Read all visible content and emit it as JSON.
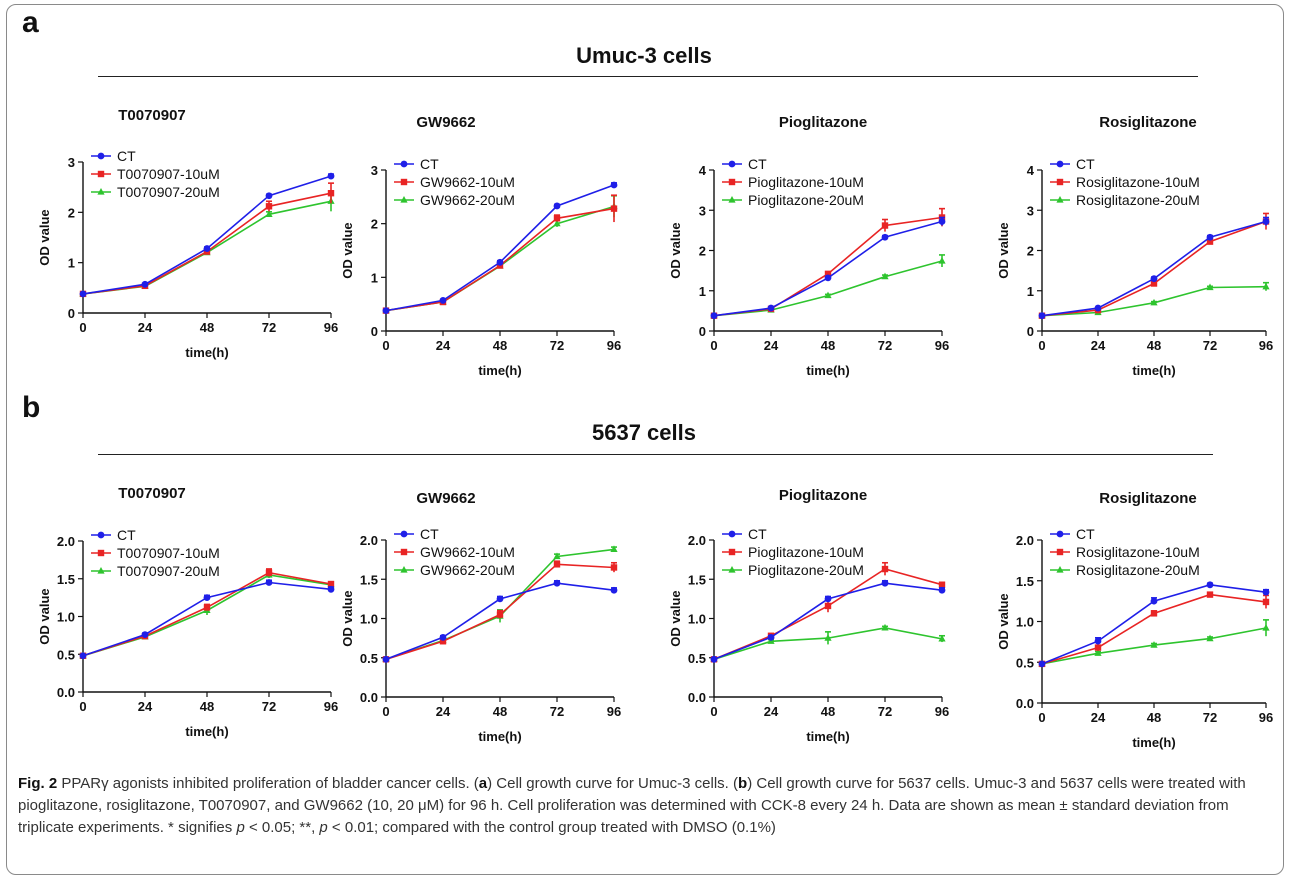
{
  "panels": [
    {
      "letter": "a",
      "title": "Umuc-3 cells"
    },
    {
      "letter": "b",
      "title": "5637 cells"
    }
  ],
  "colors": {
    "CT": "#1f1fe8",
    "10uM": "#e82424",
    "20uM": "#2ec42e"
  },
  "chart_data": [
    {
      "panel": "a",
      "type": "line",
      "title": "T0070907",
      "xlabel": "time(h)",
      "ylabel": "OD value",
      "x": [
        0,
        24,
        48,
        72,
        96
      ],
      "xlim": [
        0,
        96
      ],
      "ylim": [
        0,
        3
      ],
      "yticks": [
        "0",
        "1",
        "2",
        "3"
      ],
      "legend": "top-left",
      "series": [
        {
          "name": "CT",
          "values": [
            0.38,
            0.57,
            1.28,
            2.33,
            2.72
          ],
          "err": [
            0,
            0.02,
            0.03,
            0.03,
            0.04
          ]
        },
        {
          "name": "T0070907-10uM",
          "values": [
            0.38,
            0.54,
            1.22,
            2.12,
            2.38
          ],
          "err": [
            0,
            0.02,
            0.04,
            0.1,
            0.2
          ]
        },
        {
          "name": "T0070907-20uM",
          "values": [
            0.38,
            0.53,
            1.2,
            1.96,
            2.22
          ],
          "err": [
            0,
            0.02,
            0.04,
            0.05,
            0.2
          ]
        }
      ]
    },
    {
      "panel": "a",
      "type": "line",
      "title": "GW9662",
      "xlabel": "time(h)",
      "ylabel": "OD value",
      "x": [
        0,
        24,
        48,
        72,
        96
      ],
      "xlim": [
        0,
        96
      ],
      "ylim": [
        0,
        3
      ],
      "yticks": [
        "0",
        "1",
        "2",
        "3"
      ],
      "legend": "top-left",
      "series": [
        {
          "name": "CT",
          "values": [
            0.38,
            0.57,
            1.28,
            2.33,
            2.72
          ],
          "err": [
            0,
            0.02,
            0.03,
            0.03,
            0.04
          ]
        },
        {
          "name": "GW9662-10uM",
          "values": [
            0.38,
            0.54,
            1.22,
            2.1,
            2.28
          ],
          "err": [
            0,
            0.02,
            0.04,
            0.06,
            0.25
          ]
        },
        {
          "name": "GW9662-20uM",
          "values": [
            0.38,
            0.54,
            1.21,
            2.0,
            2.32
          ],
          "err": [
            0,
            0.02,
            0.04,
            0.06,
            0.2
          ]
        }
      ]
    },
    {
      "panel": "a",
      "type": "line",
      "title": "Pioglitazone",
      "xlabel": "time(h)",
      "ylabel": "OD value",
      "x": [
        0,
        24,
        48,
        72,
        96
      ],
      "xlim": [
        0,
        96
      ],
      "ylim": [
        0,
        4
      ],
      "yticks": [
        "0",
        "1",
        "2",
        "3",
        "4"
      ],
      "legend": "top-left",
      "series": [
        {
          "name": "CT",
          "values": [
            0.38,
            0.57,
            1.32,
            2.33,
            2.72
          ],
          "err": [
            0,
            0.02,
            0.04,
            0.04,
            0.1
          ]
        },
        {
          "name": "Pioglitazone-10uM",
          "values": [
            0.38,
            0.55,
            1.42,
            2.62,
            2.82
          ],
          "err": [
            0,
            0.02,
            0.05,
            0.15,
            0.22
          ]
        },
        {
          "name": "Pioglitazone-20uM",
          "values": [
            0.38,
            0.52,
            0.88,
            1.35,
            1.74
          ],
          "err": [
            0,
            0.02,
            0.03,
            0.04,
            0.15
          ]
        }
      ]
    },
    {
      "panel": "a",
      "type": "line",
      "title": "Rosiglitazone",
      "xlabel": "time(h)",
      "ylabel": "OD value",
      "x": [
        0,
        24,
        48,
        72,
        96
      ],
      "xlim": [
        0,
        96
      ],
      "ylim": [
        0,
        4
      ],
      "yticks": [
        "0",
        "1",
        "2",
        "3",
        "4"
      ],
      "legend": "top-left",
      "series": [
        {
          "name": "CT",
          "values": [
            0.38,
            0.57,
            1.3,
            2.33,
            2.72
          ],
          "err": [
            0,
            0.02,
            0.04,
            0.04,
            0.1
          ]
        },
        {
          "name": "Rosiglitazone-10uM",
          "values": [
            0.38,
            0.52,
            1.18,
            2.22,
            2.72
          ],
          "err": [
            0,
            0.02,
            0.04,
            0.06,
            0.2
          ]
        },
        {
          "name": "Rosiglitazone-20uM",
          "values": [
            0.38,
            0.46,
            0.7,
            1.08,
            1.1
          ],
          "err": [
            0,
            0.02,
            0.03,
            0.03,
            0.1
          ]
        }
      ]
    },
    {
      "panel": "b",
      "type": "line",
      "title": "T0070907",
      "xlabel": "time(h)",
      "ylabel": "OD value",
      "x": [
        0,
        24,
        48,
        72,
        96
      ],
      "xlim": [
        0,
        96
      ],
      "ylim": [
        0,
        2
      ],
      "yticks": [
        "0.0",
        "0.5",
        "1.0",
        "1.5",
        "2.0"
      ],
      "legend": "top-left",
      "series": [
        {
          "name": "CT",
          "values": [
            0.48,
            0.76,
            1.25,
            1.45,
            1.36
          ],
          "err": [
            0,
            0.02,
            0.03,
            0.03,
            0.03
          ]
        },
        {
          "name": "T0070907-10uM",
          "values": [
            0.48,
            0.74,
            1.12,
            1.58,
            1.43
          ],
          "err": [
            0,
            0.02,
            0.04,
            0.05,
            0.03
          ]
        },
        {
          "name": "T0070907-20uM",
          "values": [
            0.48,
            0.73,
            1.08,
            1.55,
            1.42
          ],
          "err": [
            0,
            0.02,
            0.06,
            0.04,
            0.03
          ]
        }
      ]
    },
    {
      "panel": "b",
      "type": "line",
      "title": "GW9662",
      "xlabel": "time(h)",
      "ylabel": "OD value",
      "x": [
        0,
        24,
        48,
        72,
        96
      ],
      "xlim": [
        0,
        96
      ],
      "ylim": [
        0,
        2
      ],
      "yticks": [
        "0.0",
        "0.5",
        "1.0",
        "1.5",
        "2.0"
      ],
      "legend": "top-left",
      "series": [
        {
          "name": "CT",
          "values": [
            0.48,
            0.76,
            1.25,
            1.45,
            1.36
          ],
          "err": [
            0,
            0.02,
            0.03,
            0.03,
            0.03
          ]
        },
        {
          "name": "GW9662-10uM",
          "values": [
            0.48,
            0.71,
            1.05,
            1.69,
            1.65
          ],
          "err": [
            0,
            0.02,
            0.05,
            0.04,
            0.06
          ]
        },
        {
          "name": "GW9662-20uM",
          "values": [
            0.48,
            0.72,
            1.03,
            1.79,
            1.88
          ],
          "err": [
            0,
            0.02,
            0.08,
            0.03,
            0.03
          ]
        }
      ]
    },
    {
      "panel": "b",
      "type": "line",
      "title": "Pioglitazone",
      "xlabel": "time(h)",
      "ylabel": "OD value",
      "x": [
        0,
        24,
        48,
        72,
        96
      ],
      "xlim": [
        0,
        96
      ],
      "ylim": [
        0,
        2
      ],
      "yticks": [
        "0.0",
        "0.5",
        "1.0",
        "1.5",
        "2.0"
      ],
      "legend": "top-left",
      "series": [
        {
          "name": "CT",
          "values": [
            0.48,
            0.76,
            1.25,
            1.45,
            1.36
          ],
          "err": [
            0,
            0.02,
            0.03,
            0.03,
            0.03
          ]
        },
        {
          "name": "Pioglitazone-10uM",
          "values": [
            0.48,
            0.78,
            1.16,
            1.63,
            1.43
          ],
          "err": [
            0,
            0.02,
            0.08,
            0.08,
            0.03
          ]
        },
        {
          "name": "Pioglitazone-20uM",
          "values": [
            0.48,
            0.71,
            0.75,
            0.88,
            0.74
          ],
          "err": [
            0,
            0.02,
            0.08,
            0.02,
            0.04
          ]
        }
      ]
    },
    {
      "panel": "b",
      "type": "line",
      "title": "Rosiglitazone",
      "xlabel": "time(h)",
      "ylabel": "OD value",
      "x": [
        0,
        24,
        48,
        72,
        96
      ],
      "xlim": [
        0,
        96
      ],
      "ylim": [
        0,
        2
      ],
      "yticks": [
        "0.0",
        "0.5",
        "1.0",
        "1.5",
        "2.0"
      ],
      "legend": "top-left",
      "series": [
        {
          "name": "CT",
          "values": [
            0.48,
            0.76,
            1.25,
            1.45,
            1.36
          ],
          "err": [
            0,
            0.04,
            0.04,
            0.02,
            0.03
          ]
        },
        {
          "name": "Rosiglitazone-10uM",
          "values": [
            0.48,
            0.68,
            1.1,
            1.33,
            1.24
          ],
          "err": [
            0,
            0.02,
            0.03,
            0.02,
            0.08
          ]
        },
        {
          "name": "Rosiglitazone-20uM",
          "values": [
            0.48,
            0.61,
            0.71,
            0.79,
            0.92
          ],
          "err": [
            0,
            0.02,
            0.02,
            0.02,
            0.1
          ]
        }
      ]
    }
  ],
  "caption": {
    "fig_label": "Fig. 2",
    "text_1": " PPARγ agonists inhibited proliferation of bladder cancer cells. (",
    "a_label": "a",
    "text_2": ") Cell growth curve for Umuc-3 cells. (",
    "b_label": "b",
    "text_3": ") Cell growth curve for 5637 cells. Umuc-3 and 5637 cells were treated with pioglitazone, rosiglitazone, T0070907, and GW9662 (10, 20 μM) for 96 h. Cell proliferation was determined with CCK-8 every 24 h. Data are shown as mean ± standard deviation from triplicate experiments. * signifies ",
    "p1": "p",
    "text_4": " < 0.05; **, ",
    "p2": "p",
    "text_5": " < 0.01; compared with the control group treated with DMSO (0.1%)"
  }
}
